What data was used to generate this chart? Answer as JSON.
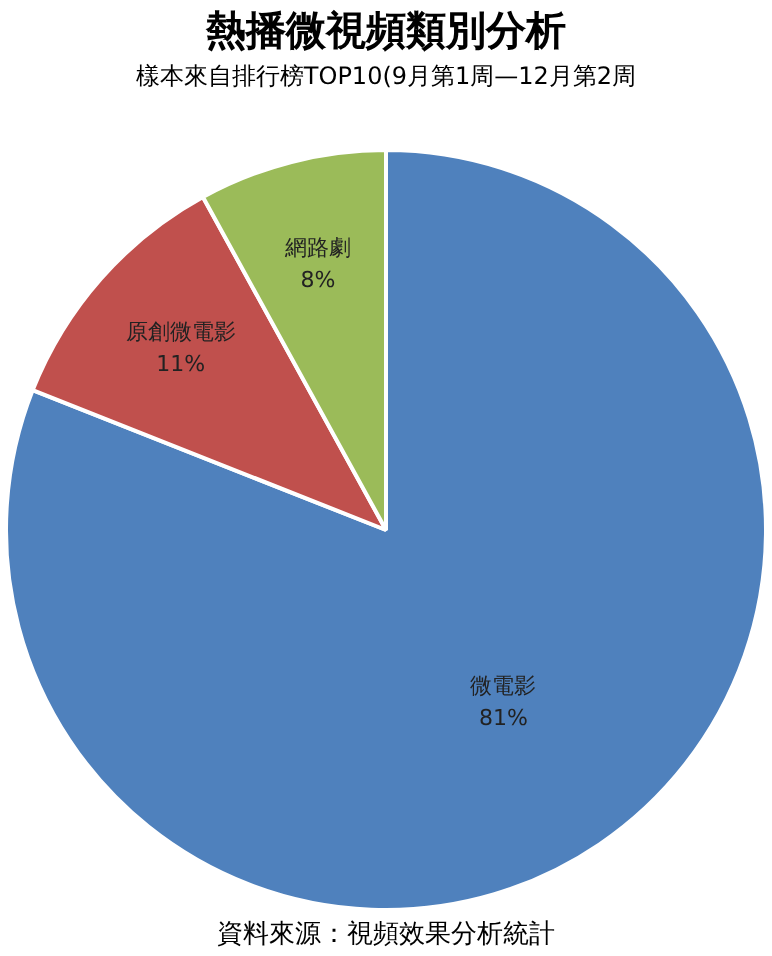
{
  "chart_data": {
    "type": "pie",
    "title": "熱播微視頻類別分析",
    "subtitle": "樣本來自排行榜TOP10(9月第1周—12月第2周",
    "categories": [
      "微電影",
      "原創微電影",
      "網路劇"
    ],
    "values": [
      81,
      11,
      8
    ],
    "value_labels": [
      "81%",
      "11%",
      "8%"
    ],
    "colors": [
      "#4f81bd",
      "#c0504d",
      "#9bbb59"
    ],
    "annotations": [
      "資料來源：視頻效果分析統計"
    ],
    "legend": false
  }
}
